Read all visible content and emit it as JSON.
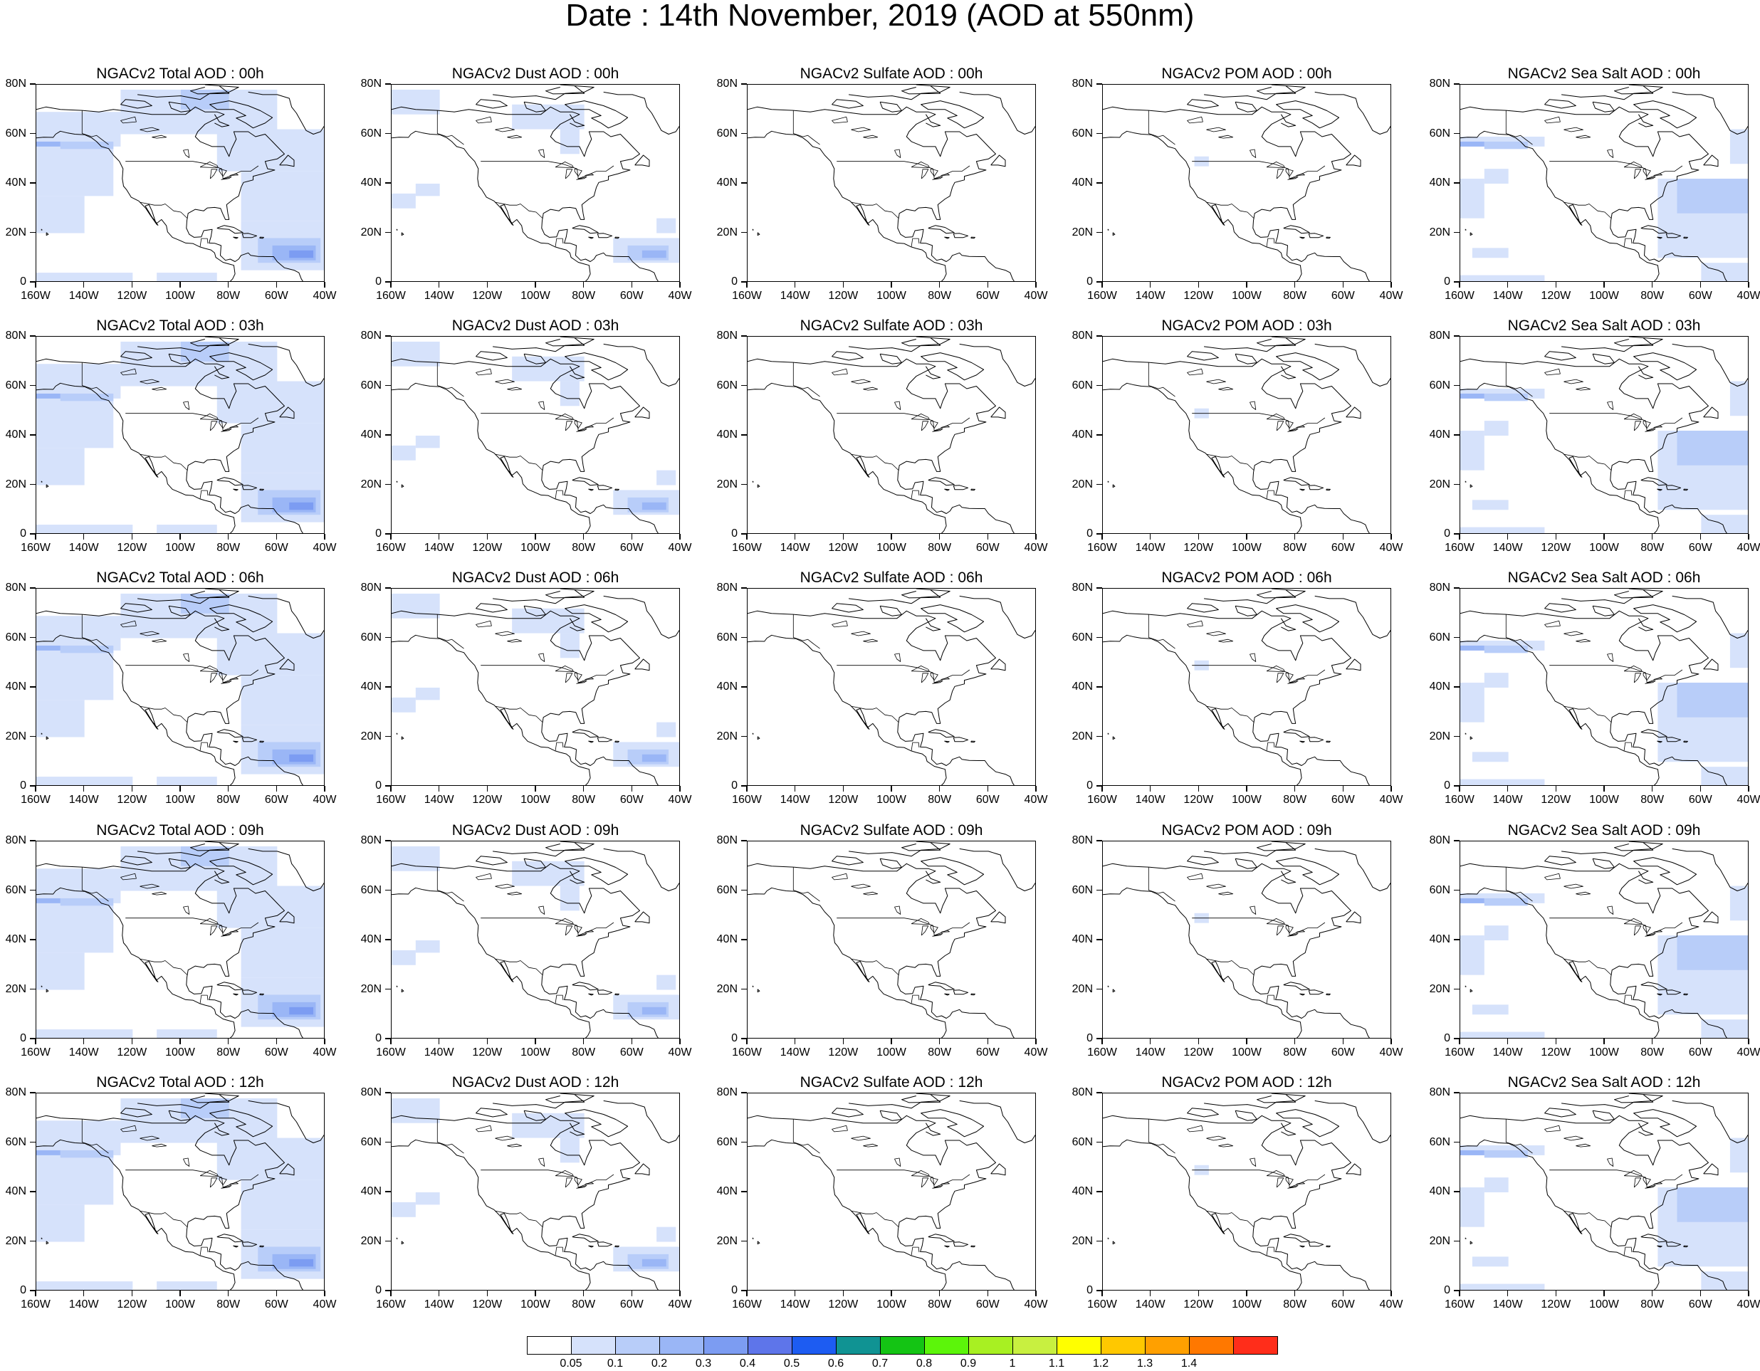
{
  "title": "Date : 14th November, 2019 (AOD at 550nm)",
  "y_ticks": [
    "80N",
    "60N",
    "40N",
    "20N",
    "0"
  ],
  "x_ticks": [
    "160W",
    "140W",
    "120W",
    "100W",
    "80W",
    "60W",
    "40W"
  ],
  "rows": [
    {
      "time": "00h",
      "panels": [
        {
          "title": "NGACv2 Total AOD : 00h",
          "species": "total"
        },
        {
          "title": "NGACv2 Dust AOD : 00h",
          "species": "dust"
        },
        {
          "title": "NGACv2 Sulfate AOD : 00h",
          "species": "sulfate"
        },
        {
          "title": "NGACv2 POM AOD : 00h",
          "species": "pom"
        },
        {
          "title": "NGACv2 Sea Salt AOD : 00h",
          "species": "seasalt"
        }
      ]
    },
    {
      "time": "03h",
      "panels": [
        {
          "title": "NGACv2 Total AOD : 03h",
          "species": "total"
        },
        {
          "title": "NGACv2 Dust AOD : 03h",
          "species": "dust"
        },
        {
          "title": "NGACv2 Sulfate AOD : 03h",
          "species": "sulfate"
        },
        {
          "title": "NGACv2 POM AOD : 03h",
          "species": "pom"
        },
        {
          "title": "NGACv2 Sea Salt AOD : 03h",
          "species": "seasalt"
        }
      ]
    },
    {
      "time": "06h",
      "panels": [
        {
          "title": "NGACv2 Total AOD : 06h",
          "species": "total"
        },
        {
          "title": "NGACv2 Dust AOD : 06h",
          "species": "dust"
        },
        {
          "title": "NGACv2 Sulfate AOD : 06h",
          "species": "sulfate"
        },
        {
          "title": "NGACv2 POM AOD : 06h",
          "species": "pom"
        },
        {
          "title": "NGACv2 Sea Salt AOD : 06h",
          "species": "seasalt"
        }
      ]
    },
    {
      "time": "09h",
      "panels": [
        {
          "title": "NGACv2 Total AOD : 09h",
          "species": "total"
        },
        {
          "title": "NGACv2 Dust AOD : 09h",
          "species": "dust"
        },
        {
          "title": "NGACv2 Sulfate AOD : 09h",
          "species": "sulfate"
        },
        {
          "title": "NGACv2 POM AOD : 09h",
          "species": "pom"
        },
        {
          "title": "NGACv2 Sea Salt  AOD : 09h",
          "species": "seasalt"
        }
      ]
    },
    {
      "time": "12h",
      "panels": [
        {
          "title": "NGACv2 Total AOD  : 12h",
          "species": "total"
        },
        {
          "title": "NGACv2 Dust AOD : 12h",
          "species": "dust"
        },
        {
          "title": "NGACv2 Sulfate AOD : 12h",
          "species": "sulfate"
        },
        {
          "title": "NGACv2 POM  AOD : 12h",
          "species": "pom"
        },
        {
          "title": "NGACv2 Sea Salt  AOD : 12h",
          "species": "seasalt"
        }
      ]
    }
  ],
  "colorbar": {
    "labels": [
      "0.05",
      "0.1",
      "0.2",
      "0.3",
      "0.4",
      "0.5",
      "0.6",
      "0.7",
      "0.8",
      "0.9",
      "1",
      "1.1",
      "1.2",
      "1.3",
      "1.4"
    ],
    "colors": [
      "#ffffff",
      "#d6e2fb",
      "#b8cdf9",
      "#9ab6f6",
      "#7c9cf2",
      "#5e75ea",
      "#1d5cf2",
      "#109393",
      "#14c414",
      "#5cf50a",
      "#a8f022",
      "#c8f040",
      "#ffff00",
      "#ffc800",
      "#ffa000",
      "#ff7800",
      "#ff2d1a"
    ]
  },
  "shade_colors": {
    "light": "#d6e2fb",
    "mid": "#b8cdf9",
    "deep": "#9ab6f6",
    "dark": "#7c9cf2",
    "core": "#5e75ea"
  },
  "coast_color": "#000000"
}
